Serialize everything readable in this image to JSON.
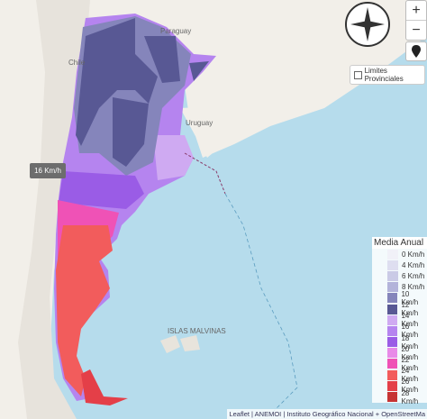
{
  "map": {
    "place_labels": [
      "Chile",
      "Paraguay",
      "Uruguay",
      "ISLAS MALVINAS"
    ],
    "tooltip": "16 Km/h",
    "controls": {
      "zoom_in": "+",
      "zoom_out": "−"
    },
    "layer_toggle": "Limites Provinciales",
    "legend": {
      "title": "Media Anual",
      "items": [
        {
          "label": "0 Km/h",
          "color": "#f1f1f8"
        },
        {
          "label": "4 Km/h",
          "color": "#dedef0"
        },
        {
          "label": "6 Km/h",
          "color": "#cacae6"
        },
        {
          "label": "8 Km/h",
          "color": "#b3b3da"
        },
        {
          "label": "10 Km/h",
          "color": "#8585bb"
        },
        {
          "label": "12 Km/h",
          "color": "#585894"
        },
        {
          "label": "14 Km/h",
          "color": "#cfaaf2"
        },
        {
          "label": "16 Km/h",
          "color": "#b584ef"
        },
        {
          "label": "18 Km/h",
          "color": "#9a5ce6"
        },
        {
          "label": "20 Km/h",
          "color": "#e88ae8"
        },
        {
          "label": "22 Km/h",
          "color": "#ef52b6"
        },
        {
          "label": "24 Km/h",
          "color": "#f25c5c"
        },
        {
          "label": "26 Km/h",
          "color": "#e43f48"
        },
        {
          "label": "28 Km/h",
          "color": "#c63434"
        }
      ]
    },
    "attribution": "Leaflet | ANEMOI | Instituto Geográfico Nacional + OpenStreetMa"
  }
}
